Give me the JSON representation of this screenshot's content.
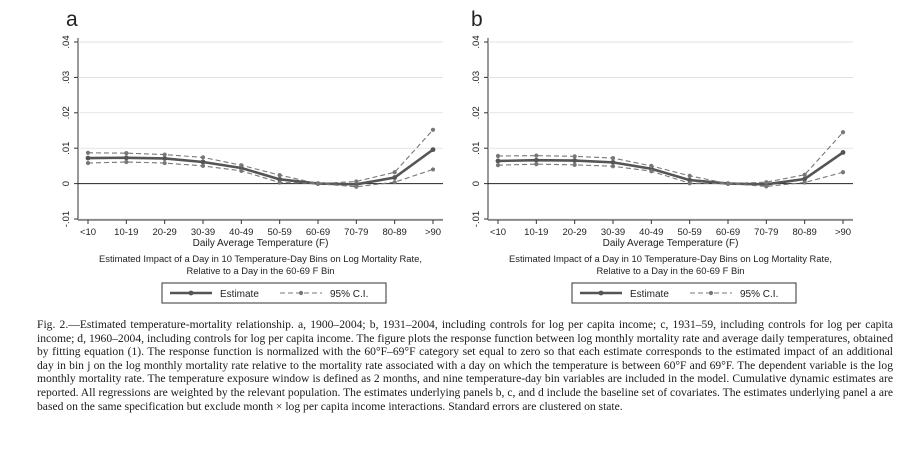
{
  "chart_data": [
    {
      "type": "line",
      "panel_label": "a",
      "categories": [
        "<10",
        "10-19",
        "20-29",
        "30-39",
        "40-49",
        "50-59",
        "60-69",
        "70-79",
        "80-89",
        ">90"
      ],
      "xlabel": "Daily Average Temperature (F)",
      "subtitle_lines": [
        "Estimated Impact of a Day in 10 Temperature-Day Bins on Log Mortality Rate,",
        "Relative to a Day in the 60-69 F Bin"
      ],
      "ylim": [
        -0.01,
        0.04
      ],
      "yticks": [
        -0.01,
        0,
        0.01,
        0.02,
        0.03,
        0.04
      ],
      "ytick_labels": [
        "-.01",
        "0",
        ".01",
        ".02",
        ".03",
        ".04"
      ],
      "zero_line": true,
      "series": [
        {
          "name": "Estimate",
          "values": [
            0.0072,
            0.0073,
            0.0071,
            0.0061,
            0.0044,
            0.0012,
            0.0,
            -0.0002,
            0.0017,
            0.0096
          ]
        },
        {
          "name": "95% C.I.",
          "values": [
            0.0087,
            0.0086,
            0.0082,
            0.0074,
            0.0052,
            0.0024,
            0.0,
            0.0006,
            0.0032,
            0.0152
          ]
        },
        {
          "name": "95% C.I.",
          "values": [
            0.0058,
            0.0061,
            0.0058,
            0.005,
            0.0036,
            0.0003,
            0.0,
            -0.0009,
            0.0004,
            0.004
          ]
        }
      ],
      "legend": [
        "Estimate",
        "95% C.I."
      ],
      "legend_position": "bottom"
    },
    {
      "type": "line",
      "panel_label": "b",
      "categories": [
        "<10",
        "10-19",
        "20-29",
        "30-39",
        "40-49",
        "50-59",
        "60-69",
        "70-79",
        "80-89",
        ">90"
      ],
      "xlabel": "Daily Average Temperature (F)",
      "subtitle_lines": [
        "Estimated Impact of a Day in 10 Temperature-Day Bins on Log Mortality Rate,",
        "Relative to a Day in the 60-69 F Bin"
      ],
      "ylim": [
        -0.01,
        0.04
      ],
      "yticks": [
        -0.01,
        0,
        0.01,
        0.02,
        0.03,
        0.04
      ],
      "ytick_labels": [
        "-.01",
        "0",
        ".01",
        ".02",
        ".03",
        ".04"
      ],
      "zero_line": true,
      "series": [
        {
          "name": "Estimate",
          "values": [
            0.0064,
            0.0066,
            0.0065,
            0.006,
            0.0042,
            0.001,
            0.0,
            -0.0002,
            0.0013,
            0.0088
          ]
        },
        {
          "name": "95% C.I.",
          "values": [
            0.0078,
            0.0079,
            0.0077,
            0.0072,
            0.005,
            0.0022,
            0.0,
            0.0004,
            0.0025,
            0.0145
          ]
        },
        {
          "name": "95% C.I.",
          "values": [
            0.0052,
            0.0055,
            0.0053,
            0.0049,
            0.0035,
            0.0001,
            0.0,
            -0.0008,
            0.0003,
            0.0032
          ]
        }
      ],
      "legend": [
        "Estimate",
        "95% C.I."
      ],
      "legend_position": "bottom"
    }
  ],
  "colors": {
    "estimate": "#555555",
    "ci": "#777777",
    "axis": "#333333"
  },
  "caption": "Fig. 2.—Estimated temperature-mortality relationship. a, 1900–2004; b, 1931–2004, including controls for log per capita income; c, 1931–59, including controls for log per capita income; d, 1960–2004, including controls for log per capita income. The figure plots the response function between log monthly mortality rate and average daily temperatures, obtained by fitting equation (1). The response function is normalized with the 60°F–69°F category set equal to zero so that each estimate corresponds to the estimated impact of an additional day in bin j on the log monthly mortality rate relative to the mortality rate associated with a day on which the temperature is between 60°F and 69°F. The dependent variable is the log monthly mortality rate. The temperature exposure window is defined as 2 months, and nine temperature-day bin variables are included in the model. Cumulative dynamic estimates are reported. All regressions are weighted by the relevant population. The estimates underlying panels b, c, and d include the baseline set of covariates. The estimates underlying panel a are based on the same specification but exclude month × log per capita income interactions. Standard errors are clustered on state."
}
